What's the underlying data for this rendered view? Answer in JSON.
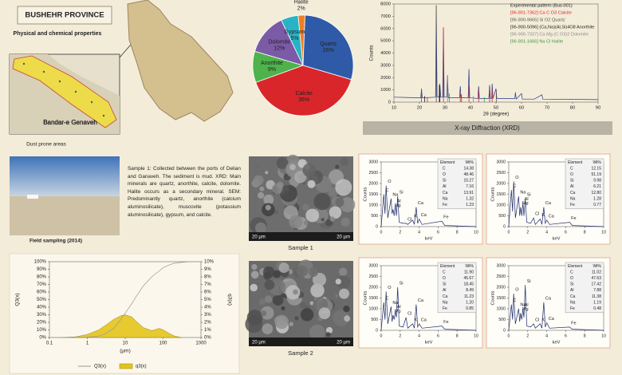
{
  "header": {
    "title": "BUSHEHR PROVINCE",
    "subtitle": "Physical and chemical properties"
  },
  "map": {
    "label": "Bandar-e Genaveh",
    "caption": "Dust prone areas"
  },
  "field": {
    "caption": "Field sampling (2014)",
    "description": "Sample 1: Collected between the ports of Delian and Ganaveh. The sediment is mud. XRD: Main minerals are quartz, anorthite, calcite, dolomite. Halite occurs as a secondary mineral. SEM: Predominantly quartz, anorthite (calcium aluminosilicate), muscovite (potassium aluminosilicate), gypsum, and calcite."
  },
  "sem": [
    {
      "caption": "Sample 1",
      "scale_bar_left": "20 µm",
      "scale_bar_right": "20 µm"
    },
    {
      "caption": "Sample 2",
      "scale_bar_left": "20 µm",
      "scale_bar_right": "20 µm"
    }
  ],
  "chart_data": [
    {
      "type": "pie",
      "categories": [
        "Halite",
        "Quartz",
        "Calcite",
        "Anorthite",
        "Dolomite",
        "Gypsum"
      ],
      "values": [
        2,
        26,
        36,
        9,
        12,
        5
      ],
      "value_labels": [
        "2%",
        "26%",
        "36%",
        "9%",
        "12%",
        "5%"
      ],
      "colors": [
        "#f07f22",
        "#2f5aa8",
        "#d9262b",
        "#4db34a",
        "#7b5aa6",
        "#2ab3c6"
      ]
    },
    {
      "type": "line",
      "title": "X-ray Diffraction (XRD)",
      "xlabel": "2θ (degree)",
      "ylabel": "Counts",
      "xlim": [
        10,
        90
      ],
      "xticks": [
        10,
        20,
        30,
        40,
        50,
        60,
        70,
        80,
        90
      ],
      "ylim": [
        0,
        8000
      ],
      "yticks": [
        0,
        1000,
        2000,
        3000,
        4000,
        5000,
        6000,
        7000,
        8000
      ],
      "series": [
        {
          "name": "Experimental pattern (Bus-001)",
          "color": "#1f3b8a",
          "mode": "line",
          "x": [
            10,
            20.5,
            20.8,
            21.1,
            26.3,
            26.6,
            26.9,
            27.7,
            28,
            28.3,
            29.1,
            29.4,
            29.7,
            30.7,
            31,
            31.3,
            35.7,
            36,
            36.3,
            39.1,
            39.4,
            39.7,
            42.9,
            43.2,
            43.5,
            47.2,
            47.5,
            47.8,
            48.3,
            48.5,
            48.8,
            50,
            50.3,
            57.4,
            57.6,
            57.9,
            60,
            60.3,
            65,
            68,
            68.3,
            90
          ],
          "values": [
            400,
            350,
            1100,
            350,
            400,
            7900,
            450,
            400,
            1500,
            400,
            400,
            6100,
            400,
            400,
            2200,
            350,
            350,
            1300,
            350,
            350,
            2700,
            350,
            300,
            1300,
            300,
            300,
            1400,
            300,
            300,
            1500,
            300,
            1100,
            300,
            300,
            800,
            250,
            700,
            250,
            250,
            600,
            250,
            200
          ]
        },
        {
          "name": "[96-901-7362] Ca C O3 Calcite",
          "color": "#d9262b",
          "mode": "stick",
          "x": [
            23.1,
            29.4,
            36,
            39.4,
            43.2,
            47.5,
            48.5
          ],
          "values": [
            400,
            6100,
            700,
            1300,
            1000,
            1100,
            1100
          ]
        },
        {
          "name": "[96-900-9665] Si O2 Quartz",
          "color": "#555555",
          "mode": "stick",
          "x": [
            20.8,
            26.6,
            36.5,
            50.1
          ],
          "values": [
            1000,
            7900,
            600,
            1000
          ]
        },
        {
          "name": "[96-900-5096] (Ca,Na)(Al,Si)4O8 Anorthite",
          "color": "#222222",
          "mode": "stick",
          "x": [
            22,
            27.8,
            28
          ],
          "values": [
            500,
            1400,
            1200
          ]
        },
        {
          "name": "[96-900-7337] Ca Mg (C O3)2 Dolomite",
          "color": "#8a8a8a",
          "mode": "stick",
          "x": [
            31,
            41.1
          ],
          "values": [
            2100,
            500
          ]
        },
        {
          "name": "[96-901-1666] Na Cl Halite",
          "color": "#3a9a3a",
          "mode": "stick",
          "x": [
            31.7,
            45.4
          ],
          "values": [
            700,
            400
          ]
        }
      ]
    },
    {
      "type": "line",
      "xlabel": "(µm)",
      "ylabel": "Q3(x)",
      "y2label": "q3(x)",
      "xlog": true,
      "xlim": [
        0.1,
        1000
      ],
      "xticks": [
        0.1,
        1,
        10,
        100,
        1000
      ],
      "ylim": [
        0,
        100
      ],
      "yticks": [
        {
          "value": 0,
          "label": "0%"
        },
        {
          "value": 10,
          "label": "10%"
        },
        {
          "value": 20,
          "label": "20%"
        },
        {
          "value": 30,
          "label": "30%"
        },
        {
          "value": 40,
          "label": "40%"
        },
        {
          "value": 50,
          "label": "50%"
        },
        {
          "value": 60,
          "label": "60%"
        },
        {
          "value": 70,
          "label": "70%"
        },
        {
          "value": 80,
          "label": "80%"
        },
        {
          "value": 90,
          "label": "90%"
        },
        {
          "value": 100,
          "label": "100%"
        }
      ],
      "y2lim": [
        0,
        10
      ],
      "y2ticks": [
        {
          "value": 0,
          "label": "0%"
        },
        {
          "value": 1,
          "label": "1%"
        },
        {
          "value": 2,
          "label": "2%"
        },
        {
          "value": 3,
          "label": "3%"
        },
        {
          "value": 4,
          "label": "4%"
        },
        {
          "value": 5,
          "label": "5%"
        },
        {
          "value": 6,
          "label": "6%"
        },
        {
          "value": 7,
          "label": "7%"
        },
        {
          "value": 8,
          "label": "8%"
        },
        {
          "value": 9,
          "label": "9%"
        },
        {
          "value": 10,
          "label": "10%"
        }
      ],
      "series": [
        {
          "name": "Q3(x)",
          "color": "#9a9a9a",
          "mode": "line",
          "x": [
            0.1,
            1,
            2,
            3,
            5,
            8,
            10,
            15,
            20,
            30,
            50,
            80,
            100,
            150,
            200,
            300,
            500,
            1000
          ],
          "values": [
            0,
            0.5,
            2,
            5,
            12,
            25,
            32,
            45,
            55,
            68,
            80,
            88,
            92,
            96,
            98,
            99,
            100,
            100
          ]
        },
        {
          "name": "q3(x)",
          "color": "#e3c41b",
          "mode": "area",
          "axis": "y2",
          "x": [
            0.2,
            0.5,
            1,
            2,
            3,
            5,
            8,
            10,
            15,
            20,
            30,
            50,
            80,
            100,
            150,
            200,
            300
          ],
          "values": [
            0,
            0.1,
            0.4,
            1,
            1.6,
            2.4,
            2.9,
            3,
            2.7,
            2.1,
            1.3,
            0.9,
            1.2,
            1,
            0.5,
            0.2,
            0
          ]
        }
      ]
    },
    {
      "type": "line",
      "xlabel": "keV",
      "ylabel": "Counts",
      "xlim": [
        0,
        10
      ],
      "xticks": [
        0,
        2,
        4,
        6,
        8,
        10
      ],
      "ylim": [
        0,
        3000
      ],
      "yticks": [
        0,
        500,
        1000,
        1500,
        2000,
        2500,
        3000
      ],
      "color": "#1a2a6c",
      "x": [
        0,
        0.28,
        0.4,
        0.52,
        0.7,
        1.04,
        1.15,
        1.25,
        1.37,
        1.49,
        1.6,
        1.74,
        1.9,
        2.3,
        2.62,
        2.8,
        3.31,
        3.5,
        3.69,
        3.85,
        4.01,
        4.3,
        6.4,
        6.7,
        10
      ],
      "values": [
        0,
        1500,
        600,
        1900,
        400,
        1300,
        600,
        800,
        500,
        1000,
        500,
        1400,
        200,
        150,
        150,
        100,
        300,
        100,
        900,
        150,
        350,
        100,
        250,
        50,
        0
      ],
      "annotations": [
        "C",
        "O",
        "Na",
        "Mg",
        "Al",
        "Si",
        "Cl",
        "K",
        "Ca",
        "Ca",
        "Fe"
      ],
      "table": {
        "header": [
          "Element",
          "Wt%"
        ],
        "rows": [
          [
            "C",
            "14.38"
          ],
          [
            "O",
            "48.46"
          ],
          [
            "Si",
            "10.27"
          ],
          [
            "Al",
            "7.16"
          ],
          [
            "Ca",
            "13.91"
          ],
          [
            "Na",
            "1.32"
          ],
          [
            "Fe",
            "1.23"
          ]
        ]
      }
    },
    {
      "type": "line",
      "xlabel": "keV",
      "ylabel": "Counts",
      "xlim": [
        0,
        10
      ],
      "xticks": [
        0,
        2,
        4,
        6,
        8,
        10
      ],
      "ylim": [
        0,
        3000
      ],
      "yticks": [
        0,
        500,
        1000,
        1500,
        2000,
        2500,
        3000
      ],
      "color": "#1a2a6c",
      "x": [
        0,
        0.28,
        0.4,
        0.52,
        0.7,
        1.04,
        1.15,
        1.25,
        1.37,
        1.49,
        1.6,
        1.74,
        1.9,
        2.3,
        2.62,
        2.8,
        3.31,
        3.5,
        3.69,
        3.85,
        4.01,
        4.3,
        6.4,
        6.7,
        10
      ],
      "values": [
        0,
        1700,
        700,
        2100,
        400,
        1400,
        500,
        900,
        500,
        1100,
        500,
        1300,
        200,
        150,
        400,
        100,
        350,
        100,
        900,
        150,
        300,
        100,
        200,
        50,
        0
      ],
      "annotations": [
        "C",
        "O",
        "Na",
        "Mg",
        "Al",
        "Si",
        "Cl",
        "K",
        "Ca",
        "Ca",
        "Fe"
      ],
      "table": {
        "header": [
          "Element",
          "Wt%"
        ],
        "rows": [
          [
            "C",
            "12.15"
          ],
          [
            "O",
            "51.19"
          ],
          [
            "Si",
            "9.98"
          ],
          [
            "Al",
            "6.21"
          ],
          [
            "Ca",
            "12.80"
          ],
          [
            "Na",
            "1.28"
          ],
          [
            "Fe",
            "0.77"
          ]
        ]
      }
    },
    {
      "type": "line",
      "xlabel": "keV",
      "ylabel": "Counts",
      "xlim": [
        0,
        10
      ],
      "xticks": [
        0,
        2,
        4,
        6,
        8,
        10
      ],
      "ylim": [
        0,
        3000
      ],
      "yticks": [
        0,
        500,
        1000,
        1500,
        2000,
        2500,
        3000
      ],
      "color": "#1a2a6c",
      "x": [
        0,
        0.28,
        0.4,
        0.52,
        0.7,
        1.04,
        1.15,
        1.25,
        1.37,
        1.49,
        1.6,
        1.74,
        1.9,
        2.3,
        2.62,
        2.8,
        3.31,
        3.5,
        3.69,
        3.85,
        4.01,
        4.3,
        6.4,
        6.7,
        10
      ],
      "values": [
        0,
        1300,
        500,
        1800,
        300,
        1100,
        400,
        700,
        500,
        900,
        600,
        2000,
        200,
        150,
        600,
        100,
        300,
        100,
        1200,
        150,
        300,
        100,
        200,
        50,
        0
      ],
      "annotations": [
        "C",
        "O",
        "Na",
        "Mg",
        "Al",
        "Si",
        "Cl",
        "K",
        "Ca",
        "Ca",
        "Fe"
      ],
      "table": {
        "header": [
          "Element",
          "Wt%"
        ],
        "rows": [
          [
            "C",
            "11.90"
          ],
          [
            "O",
            "45.67"
          ],
          [
            "Si",
            "18.45"
          ],
          [
            "Al",
            "8.49"
          ],
          [
            "Ca",
            "11.23"
          ],
          [
            "Na",
            "1.20"
          ],
          [
            "Fe",
            "0.85"
          ]
        ]
      }
    },
    {
      "type": "line",
      "xlabel": "keV",
      "ylabel": "Counts",
      "xlim": [
        0,
        10
      ],
      "xticks": [
        0,
        2,
        4,
        6,
        8,
        10
      ],
      "ylim": [
        0,
        3000
      ],
      "yticks": [
        0,
        500,
        1000,
        1500,
        2000,
        2500,
        3000
      ],
      "color": "#1a2a6c",
      "x": [
        0,
        0.28,
        0.4,
        0.52,
        0.7,
        1.04,
        1.15,
        1.25,
        1.37,
        1.49,
        1.6,
        1.74,
        1.9,
        2.3,
        2.62,
        2.8,
        3.31,
        3.5,
        3.69,
        3.85,
        4.01,
        4.3,
        6.4,
        6.7,
        10
      ],
      "values": [
        0,
        1200,
        500,
        1700,
        300,
        1000,
        400,
        800,
        500,
        1000,
        600,
        2100,
        200,
        150,
        300,
        100,
        300,
        100,
        1300,
        150,
        350,
        100,
        150,
        50,
        0
      ],
      "annotations": [
        "C",
        "O",
        "Na",
        "Mg",
        "Al",
        "Si",
        "Cl",
        "K",
        "Ca",
        "Ca",
        "Fe"
      ],
      "table": {
        "header": [
          "Element",
          "Wt%"
        ],
        "rows": [
          [
            "C",
            "11.02"
          ],
          [
            "O",
            "47.63"
          ],
          [
            "Si",
            "17.42"
          ],
          [
            "Al",
            "7.88"
          ],
          [
            "Ca",
            "11.38"
          ],
          [
            "Na",
            "1.19"
          ],
          [
            "Fe",
            "0.48"
          ]
        ]
      }
    }
  ]
}
